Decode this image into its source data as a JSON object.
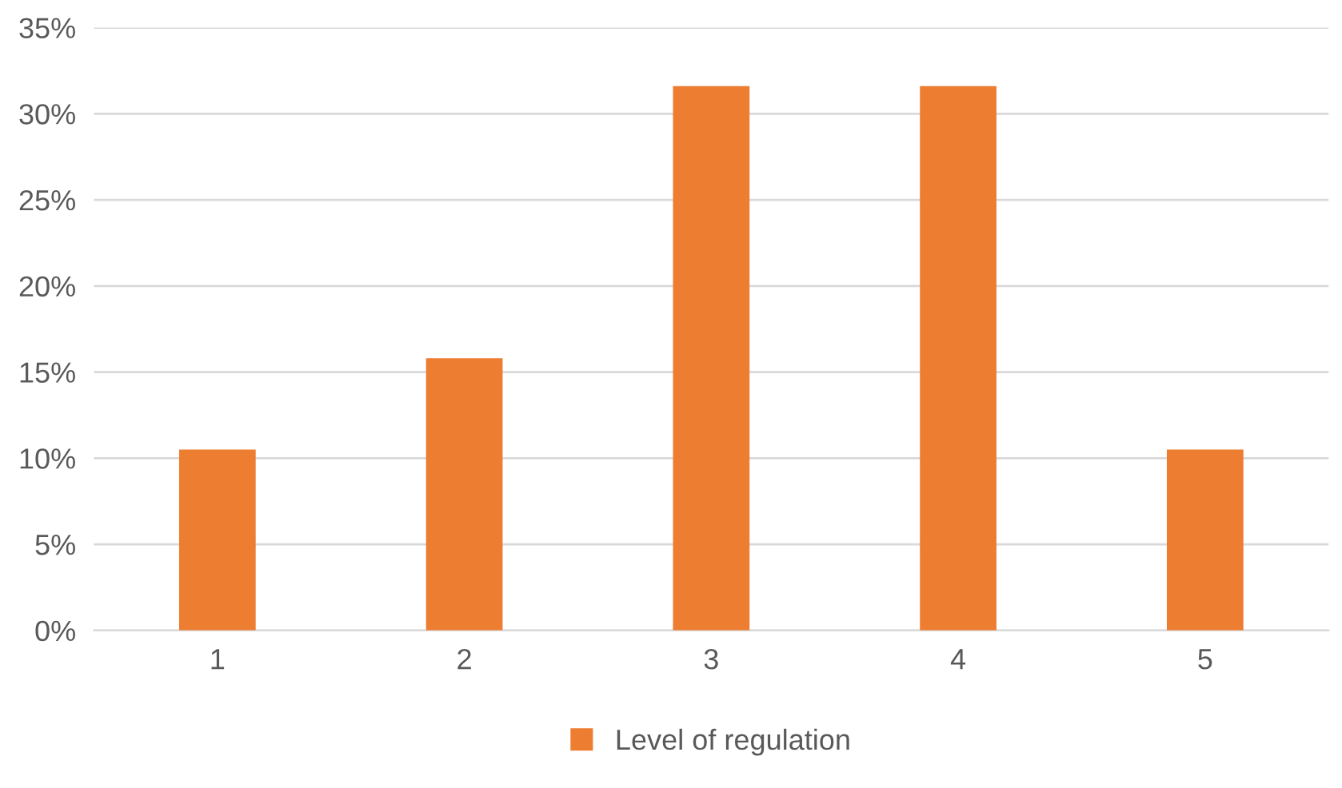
{
  "chart_data": {
    "type": "bar",
    "categories": [
      "1",
      "2",
      "3",
      "4",
      "5"
    ],
    "series": [
      {
        "name": "Level of regulation",
        "color": "#ed7d31",
        "values": [
          10.5,
          15.8,
          31.6,
          31.6,
          10.5
        ]
      }
    ],
    "ylim": [
      0,
      35
    ],
    "yticks": [
      {
        "value": 0,
        "label": "0%"
      },
      {
        "value": 5,
        "label": "5%"
      },
      {
        "value": 10,
        "label": "10%"
      },
      {
        "value": 15,
        "label": "15%"
      },
      {
        "value": 20,
        "label": "20%"
      },
      {
        "value": 25,
        "label": "25%"
      },
      {
        "value": 30,
        "label": "30%"
      },
      {
        "value": 35,
        "label": "35%"
      }
    ],
    "grid": "y",
    "legend": "bottom"
  }
}
